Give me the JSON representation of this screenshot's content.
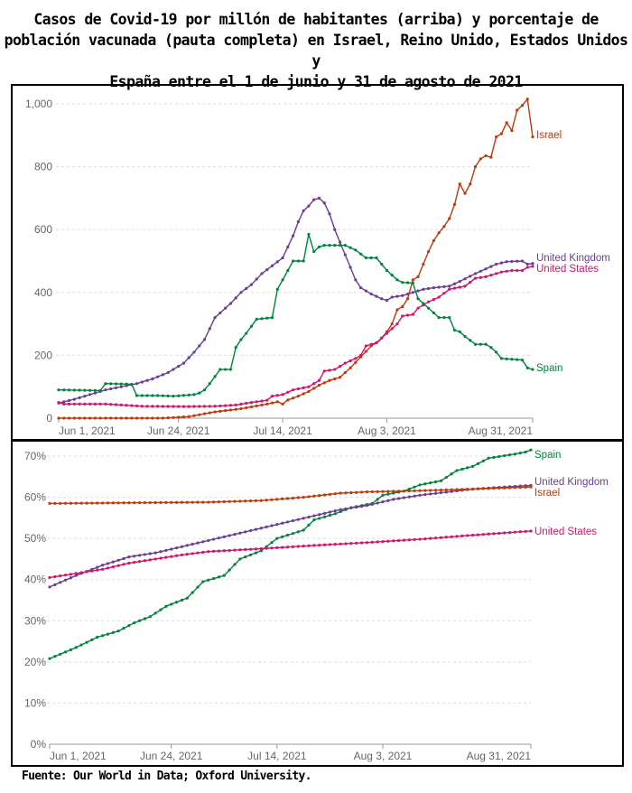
{
  "title_lines": [
    "Casos de Covid-19 por millón de habitantes (arriba) y porcentaje de",
    "población vacunada (pauta completa) en Israel, Reino Unido, Estados Unidos y",
    "España entre el 1 de junio y 31 de agosto de 2021"
  ],
  "source": "Fuente: Our World in Data; Oxford University.",
  "colors": {
    "Israel": "#be3a0e",
    "United Kingdom": "#6b3d92",
    "United States": "#d4136d",
    "Spain": "#00843d"
  },
  "chart_data": [
    {
      "type": "line",
      "title": "Casos de Covid-19 por millón de habitantes",
      "start_date": "2021-06-01",
      "x_unit": "days since Jun 1, 2021",
      "xlim": [
        0,
        91
      ],
      "x_ticks": [
        {
          "day": 0,
          "label": "Jun 1, 2021"
        },
        {
          "day": 23,
          "label": "Jun 24, 2021"
        },
        {
          "day": 43,
          "label": "Jul 14, 2021"
        },
        {
          "day": 63,
          "label": "Aug 3, 2021"
        },
        {
          "day": 91,
          "label": "Aug 31, 2021"
        }
      ],
      "ylim": [
        0,
        1000
      ],
      "y_ticks": [
        {
          "v": 0,
          "label": "0"
        },
        {
          "v": 200,
          "label": "200"
        },
        {
          "v": 400,
          "label": "400"
        },
        {
          "v": 600,
          "label": "600"
        },
        {
          "v": 800,
          "label": "800"
        },
        {
          "v": 1000,
          "label": "1,000"
        }
      ],
      "grid": true,
      "series": [
        {
          "name": "Israel",
          "points": [
            [
              0,
              0
            ],
            [
              20,
              0
            ],
            [
              25,
              5
            ],
            [
              30,
              20
            ],
            [
              35,
              30
            ],
            [
              40,
              45
            ],
            [
              42,
              52
            ],
            [
              43,
              45
            ],
            [
              44,
              58
            ],
            [
              46,
              70
            ],
            [
              48,
              85
            ],
            [
              50,
              105
            ],
            [
              52,
              120
            ],
            [
              54,
              130
            ],
            [
              56,
              160
            ],
            [
              58,
              195
            ],
            [
              60,
              230
            ],
            [
              61.5,
              245
            ],
            [
              63,
              275
            ],
            [
              64,
              300
            ],
            [
              65,
              345
            ],
            [
              66,
              355
            ],
            [
              67,
              380
            ],
            [
              68,
              440
            ],
            [
              69,
              450
            ],
            [
              71,
              530
            ],
            [
              72,
              565
            ],
            [
              73,
              590
            ],
            [
              74,
              610
            ],
            [
              75,
              635
            ],
            [
              76,
              680
            ],
            [
              77,
              745
            ],
            [
              78,
              715
            ],
            [
              79,
              745
            ],
            [
              80,
              800
            ],
            [
              81,
              825
            ],
            [
              82,
              835
            ],
            [
              83,
              830
            ],
            [
              84,
              895
            ],
            [
              85,
              905
            ],
            [
              86,
              940
            ],
            [
              87,
              915
            ],
            [
              88,
              980
            ],
            [
              89,
              995
            ],
            [
              90,
              1015
            ],
            [
              91,
              895
            ]
          ]
        },
        {
          "name": "United Kingdom",
          "points": [
            [
              0,
              48
            ],
            [
              3,
              60
            ],
            [
              9,
              90
            ],
            [
              15,
              110
            ],
            [
              18,
              125
            ],
            [
              21,
              145
            ],
            [
              24,
              175
            ],
            [
              26,
              210
            ],
            [
              28,
              250
            ],
            [
              30,
              320
            ],
            [
              33,
              365
            ],
            [
              35,
              400
            ],
            [
              37,
              425
            ],
            [
              39,
              460
            ],
            [
              41,
              485
            ],
            [
              43,
              510
            ],
            [
              44,
              545
            ],
            [
              45,
              580
            ],
            [
              46,
              625
            ],
            [
              47,
              660
            ],
            [
              48,
              675
            ],
            [
              49,
              695
            ],
            [
              50,
              700
            ],
            [
              51,
              685
            ],
            [
              52,
              650
            ],
            [
              53,
              600
            ],
            [
              54,
              560
            ],
            [
              55,
              520
            ],
            [
              56,
              480
            ],
            [
              57,
              440
            ],
            [
              58,
              415
            ],
            [
              60,
              395
            ],
            [
              62,
              380
            ],
            [
              63,
              375
            ],
            [
              64,
              385
            ],
            [
              66,
              390
            ],
            [
              68,
              400
            ],
            [
              70,
              410
            ],
            [
              72,
              415
            ],
            [
              75,
              420
            ],
            [
              77,
              435
            ],
            [
              80,
              460
            ],
            [
              82,
              475
            ],
            [
              84,
              490
            ],
            [
              86,
              498
            ],
            [
              89,
              500
            ],
            [
              90,
              490
            ],
            [
              91,
              492
            ]
          ]
        },
        {
          "name": "United States",
          "points": [
            [
              0,
              50
            ],
            [
              1,
              45
            ],
            [
              9,
              45
            ],
            [
              16,
              38
            ],
            [
              24,
              37
            ],
            [
              30,
              38
            ],
            [
              34,
              42
            ],
            [
              37,
              50
            ],
            [
              40,
              57
            ],
            [
              41,
              70
            ],
            [
              43,
              75
            ],
            [
              45,
              90
            ],
            [
              48,
              100
            ],
            [
              50,
              120
            ],
            [
              51,
              150
            ],
            [
              53,
              155
            ],
            [
              55,
              175
            ],
            [
              57,
              190
            ],
            [
              58,
              200
            ],
            [
              59,
              230
            ],
            [
              61,
              240
            ],
            [
              63,
              270
            ],
            [
              64,
              285
            ],
            [
              65,
              300
            ],
            [
              66,
              325
            ],
            [
              68,
              330
            ],
            [
              69,
              350
            ],
            [
              71,
              370
            ],
            [
              73,
              385
            ],
            [
              75,
              410
            ],
            [
              78,
              420
            ],
            [
              80,
              445
            ],
            [
              82,
              450
            ],
            [
              85,
              465
            ],
            [
              87,
              470
            ],
            [
              89,
              470
            ],
            [
              90,
              480
            ],
            [
              91,
              483
            ]
          ]
        },
        {
          "name": "Spain",
          "points": [
            [
              0,
              90
            ],
            [
              8,
              88
            ],
            [
              9,
              110
            ],
            [
              14,
              108
            ],
            [
              15,
              72
            ],
            [
              19,
              72
            ],
            [
              22,
              70
            ],
            [
              26,
              75
            ],
            [
              27,
              80
            ],
            [
              28,
              90
            ],
            [
              29,
              110
            ],
            [
              31,
              155
            ],
            [
              33,
              155
            ],
            [
              34,
              225
            ],
            [
              35,
              250
            ],
            [
              36,
              270
            ],
            [
              38,
              315
            ],
            [
              41,
              320
            ],
            [
              42,
              410
            ],
            [
              43,
              440
            ],
            [
              44,
              470
            ],
            [
              45,
              500
            ],
            [
              47,
              500
            ],
            [
              48,
              585
            ],
            [
              49,
              530
            ],
            [
              50,
              545
            ],
            [
              51,
              550
            ],
            [
              55,
              550
            ],
            [
              57,
              535
            ],
            [
              59,
              510
            ],
            [
              61,
              510
            ],
            [
              62,
              490
            ],
            [
              63,
              470
            ],
            [
              64,
              455
            ],
            [
              65,
              440
            ],
            [
              66,
              432
            ],
            [
              68,
              430
            ],
            [
              69,
              380
            ],
            [
              71,
              350
            ],
            [
              73,
              320
            ],
            [
              75,
              320
            ],
            [
              76,
              280
            ],
            [
              77,
              275
            ],
            [
              78,
              260
            ],
            [
              80,
              235
            ],
            [
              82,
              235
            ],
            [
              83,
              225
            ],
            [
              84,
              210
            ],
            [
              85,
              190
            ],
            [
              89,
              185
            ],
            [
              90,
              160
            ],
            [
              91,
              155
            ]
          ]
        }
      ]
    },
    {
      "type": "line",
      "title": "Porcentaje de población vacunada (pauta completa)",
      "start_date": "2021-06-01",
      "x_unit": "days since Jun 1, 2021",
      "xlim": [
        0,
        91
      ],
      "x_ticks": [
        {
          "day": 0,
          "label": "Jun 1, 2021"
        },
        {
          "day": 23,
          "label": "Jun 24, 2021"
        },
        {
          "day": 43,
          "label": "Jul 14, 2021"
        },
        {
          "day": 63,
          "label": "Aug 3, 2021"
        },
        {
          "day": 91,
          "label": "Aug 31, 2021"
        }
      ],
      "ylim": [
        0,
        70
      ],
      "y_ticks": [
        {
          "v": 0,
          "label": "0%"
        },
        {
          "v": 10,
          "label": "10%"
        },
        {
          "v": 20,
          "label": "20%"
        },
        {
          "v": 30,
          "label": "30%"
        },
        {
          "v": 40,
          "label": "40%"
        },
        {
          "v": 50,
          "label": "50%"
        },
        {
          "v": 60,
          "label": "60%"
        },
        {
          "v": 70,
          "label": "70%"
        }
      ],
      "grid": true,
      "series": [
        {
          "name": "Spain",
          "points": [
            [
              0,
              20.8
            ],
            [
              5,
              23.5
            ],
            [
              9,
              26
            ],
            [
              13,
              27.5
            ],
            [
              16,
              29.5
            ],
            [
              19,
              31
            ],
            [
              22,
              33.5
            ],
            [
              26,
              35.5
            ],
            [
              29,
              39.5
            ],
            [
              33,
              41
            ],
            [
              36,
              45
            ],
            [
              40,
              47
            ],
            [
              43,
              50
            ],
            [
              48,
              52
            ],
            [
              50,
              54.5
            ],
            [
              54,
              56
            ],
            [
              57,
              57.5
            ],
            [
              61,
              58.5
            ],
            [
              63,
              60.5
            ],
            [
              67,
              61.5
            ],
            [
              70,
              63
            ],
            [
              74,
              64
            ],
            [
              77,
              66.5
            ],
            [
              80,
              67.5
            ],
            [
              83,
              69.5
            ],
            [
              88,
              70.5
            ],
            [
              90,
              71
            ],
            [
              91,
              71.5
            ]
          ]
        },
        {
          "name": "United Kingdom",
          "points": [
            [
              0,
              38.2
            ],
            [
              5,
              41
            ],
            [
              10,
              43.5
            ],
            [
              15,
              45.5
            ],
            [
              20,
              46.5
            ],
            [
              25,
              48
            ],
            [
              30,
              49.5
            ],
            [
              35,
              51
            ],
            [
              40,
              52.5
            ],
            [
              45,
              54
            ],
            [
              50,
              55.5
            ],
            [
              55,
              57
            ],
            [
              60,
              58
            ],
            [
              65,
              59.5
            ],
            [
              70,
              60.5
            ],
            [
              80,
              62
            ],
            [
              91,
              62.9
            ]
          ]
        },
        {
          "name": "Israel",
          "points": [
            [
              0,
              58.5
            ],
            [
              30,
              58.8
            ],
            [
              40,
              59.2
            ],
            [
              48,
              60
            ],
            [
              55,
              61
            ],
            [
              60,
              61.3
            ],
            [
              70,
              61.6
            ],
            [
              80,
              62
            ],
            [
              91,
              62.5
            ]
          ]
        },
        {
          "name": "United States",
          "points": [
            [
              0,
              40.5
            ],
            [
              5,
              41.5
            ],
            [
              10,
              42.5
            ],
            [
              15,
              44
            ],
            [
              20,
              45
            ],
            [
              25,
              46
            ],
            [
              30,
              46.8
            ],
            [
              40,
              47.5
            ],
            [
              50,
              48.3
            ],
            [
              60,
              49
            ],
            [
              70,
              49.8
            ],
            [
              80,
              50.8
            ],
            [
              91,
              51.8
            ]
          ]
        }
      ]
    }
  ]
}
